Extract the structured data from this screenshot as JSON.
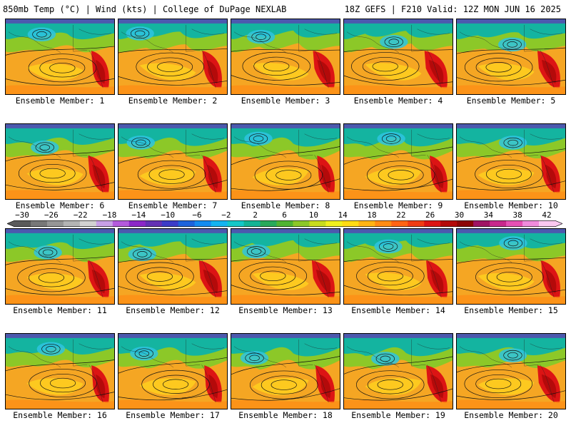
{
  "header": {
    "left": "850mb Temp (°C) | Wind (kts) | College of DuPage NEXLAB",
    "right": "18Z GEFS | F210 Valid: 12Z MON JUN 16 2025"
  },
  "members": [
    "Ensemble Member: 1",
    "Ensemble Member: 2",
    "Ensemble Member: 3",
    "Ensemble Member: 4",
    "Ensemble Member: 5",
    "Ensemble Member: 6",
    "Ensemble Member: 7",
    "Ensemble Member: 8",
    "Ensemble Member: 9",
    "Ensemble Member: 10",
    "Ensemble Member: 11",
    "Ensemble Member: 12",
    "Ensemble Member: 13",
    "Ensemble Member: 14",
    "Ensemble Member: 15",
    "Ensemble Member: 16",
    "Ensemble Member: 17",
    "Ensemble Member: 18",
    "Ensemble Member: 19",
    "Ensemble Member: 20"
  ],
  "colorbar": {
    "labels": [
      "−30",
      "−26",
      "−22",
      "−18",
      "−14",
      "−10",
      "−6",
      "−2",
      "2",
      "6",
      "10",
      "14",
      "18",
      "22",
      "26",
      "30",
      "34",
      "38",
      "42"
    ],
    "colors": [
      "#5a5a5a",
      "#787878",
      "#969696",
      "#b4b4b4",
      "#d2d2d2",
      "#c8a0e6",
      "#b45adc",
      "#8c28c8",
      "#6432b4",
      "#3c3cc8",
      "#1e64dc",
      "#148cf0",
      "#14b4f0",
      "#14c8c8",
      "#14b496",
      "#28aa5a",
      "#50b432",
      "#8cc828",
      "#c8dc1e",
      "#f0f01e",
      "#ffdc14",
      "#ffb414",
      "#ff8c14",
      "#ff6414",
      "#f03c14",
      "#dc1414",
      "#b40a0a",
      "#8c0505",
      "#a01464",
      "#c8288c",
      "#e650b4",
      "#f08cdc",
      "#fac8f0"
    ]
  }
}
